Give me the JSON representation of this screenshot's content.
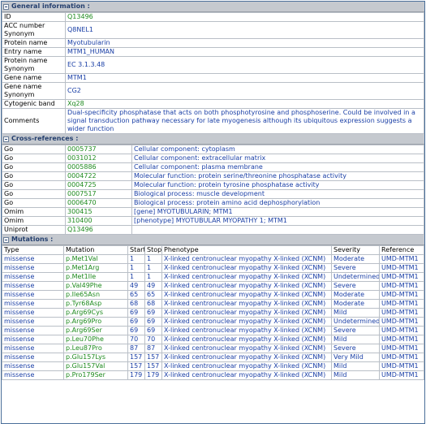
{
  "general": {
    "title": "General information :",
    "rows": [
      {
        "label": "ID",
        "value": "Q13496",
        "kind": "green"
      },
      {
        "label": "ACC number Synonym",
        "value": "Q8NEL1",
        "kind": "blue"
      },
      {
        "label": "Protein name",
        "value": "Myotubularin",
        "kind": "blue"
      },
      {
        "label": "Entry name",
        "value": "MTM1_HUMAN",
        "kind": "blue"
      },
      {
        "label": "Protein name Synonym",
        "value": "EC 3.1.3.48",
        "kind": "blue"
      },
      {
        "label": "Gene name",
        "value": "MTM1",
        "kind": "blue"
      },
      {
        "label": "Gene name Synonym",
        "value": "CG2",
        "kind": "blue"
      },
      {
        "label": "Cytogenic band",
        "value": "Xq28",
        "kind": "green"
      },
      {
        "label": "Comments",
        "value": "Dual-specificity phosphatase that acts on both phosphotyrosine and phosphoserine. Could be involved in a signal transduction pathway necessary for late myogenesis although its ubiquitous expression suggests a wider function",
        "kind": "blue"
      }
    ]
  },
  "crossref": {
    "title": "Cross-references :",
    "rows": [
      {
        "db": "Go",
        "id": "0005737",
        "desc": "Cellular component: cytoplasm"
      },
      {
        "db": "Go",
        "id": "0031012",
        "desc": "Cellular component: extracellular matrix"
      },
      {
        "db": "Go",
        "id": "0005886",
        "desc": "Cellular component: plasma membrane"
      },
      {
        "db": "Go",
        "id": "0004722",
        "desc": "Molecular function: protein serine/threonine phosphatase activity"
      },
      {
        "db": "Go",
        "id": "0004725",
        "desc": "Molecular function: protein tyrosine phosphatase activity"
      },
      {
        "db": "Go",
        "id": "0007517",
        "desc": "Biological process: muscle development"
      },
      {
        "db": "Go",
        "id": "0006470",
        "desc": "Biological process: protein amino acid dephosphorylation"
      },
      {
        "db": "Omim",
        "id": "300415",
        "desc": "[gene] MYOTUBULARIN; MTM1"
      },
      {
        "db": "Omim",
        "id": "310400",
        "desc": "[phenotype] MYOTUBULAR MYOPATHY 1; MTM1"
      },
      {
        "db": "Uniprot",
        "id": "Q13496",
        "desc": ""
      }
    ]
  },
  "mutations": {
    "title": "Mutations :",
    "headers": [
      "Type",
      "Mutation",
      "Start",
      "Stop",
      "Phenotype",
      "Severity",
      "Reference"
    ],
    "rows": [
      [
        "missense",
        "p.Met1Val",
        "1",
        "1",
        "X-linked centronuclear myopathy X-linked (XCNM)",
        "Moderate",
        "UMD-MTM1"
      ],
      [
        "missense",
        "p.Met1Arg",
        "1",
        "1",
        "X-linked centronuclear myopathy X-linked (XCNM)",
        "Severe",
        "UMD-MTM1"
      ],
      [
        "missense",
        "p.Met1Ile",
        "1",
        "1",
        "X-linked centronuclear myopathy X-linked (XCNM)",
        "Undetermined",
        "UMD-MTM1"
      ],
      [
        "missense",
        "p.Val49Phe",
        "49",
        "49",
        "X-linked centronuclear myopathy X-linked (XCNM)",
        "Severe",
        "UMD-MTM1"
      ],
      [
        "missense",
        "p.Ile65Asn",
        "65",
        "65",
        "X-linked centronuclear myopathy X-linked (XCNM)",
        "Moderate",
        "UMD-MTM1"
      ],
      [
        "missense",
        "p.Tyr68Asp",
        "68",
        "68",
        "X-linked centronuclear myopathy X-linked (XCNM)",
        "Moderate",
        "UMD-MTM1"
      ],
      [
        "missense",
        "p.Arg69Cys",
        "69",
        "69",
        "X-linked centronuclear myopathy X-linked (XCNM)",
        "Mild",
        "UMD-MTM1"
      ],
      [
        "missense",
        "p.Arg69Pro",
        "69",
        "69",
        "X-linked centronuclear myopathy X-linked (XCNM)",
        "Undetermined",
        "UMD-MTM1"
      ],
      [
        "missense",
        "p.Arg69Ser",
        "69",
        "69",
        "X-linked centronuclear myopathy X-linked (XCNM)",
        "Severe",
        "UMD-MTM1"
      ],
      [
        "missense",
        "p.Leu70Phe",
        "70",
        "70",
        "X-linked centronuclear myopathy X-linked (XCNM)",
        "Mild",
        "UMD-MTM1"
      ],
      [
        "missense",
        "p.Leu87Pro",
        "87",
        "87",
        "X-linked centronuclear myopathy X-linked (XCNM)",
        "Severe",
        "UMD-MTM1"
      ],
      [
        "missense",
        "p.Glu157Lys",
        "157",
        "157",
        "X-linked centronuclear myopathy X-linked (XCNM)",
        "Very Mild",
        "UMD-MTM1"
      ],
      [
        "missense",
        "p.Glu157Val",
        "157",
        "157",
        "X-linked centronuclear myopathy X-linked (XCNM)",
        "Mild",
        "UMD-MTM1"
      ],
      [
        "missense",
        "p.Pro179Ser",
        "179",
        "179",
        "X-linked centronuclear myopathy X-linked (XCNM)",
        "Mild",
        "UMD-MTM1"
      ]
    ]
  },
  "colors": {
    "link_blue": "#1a3fa6",
    "link_green": "#1e8a1e",
    "section_header_bg": "#c5c9cf",
    "border": "#4a6f9a"
  }
}
